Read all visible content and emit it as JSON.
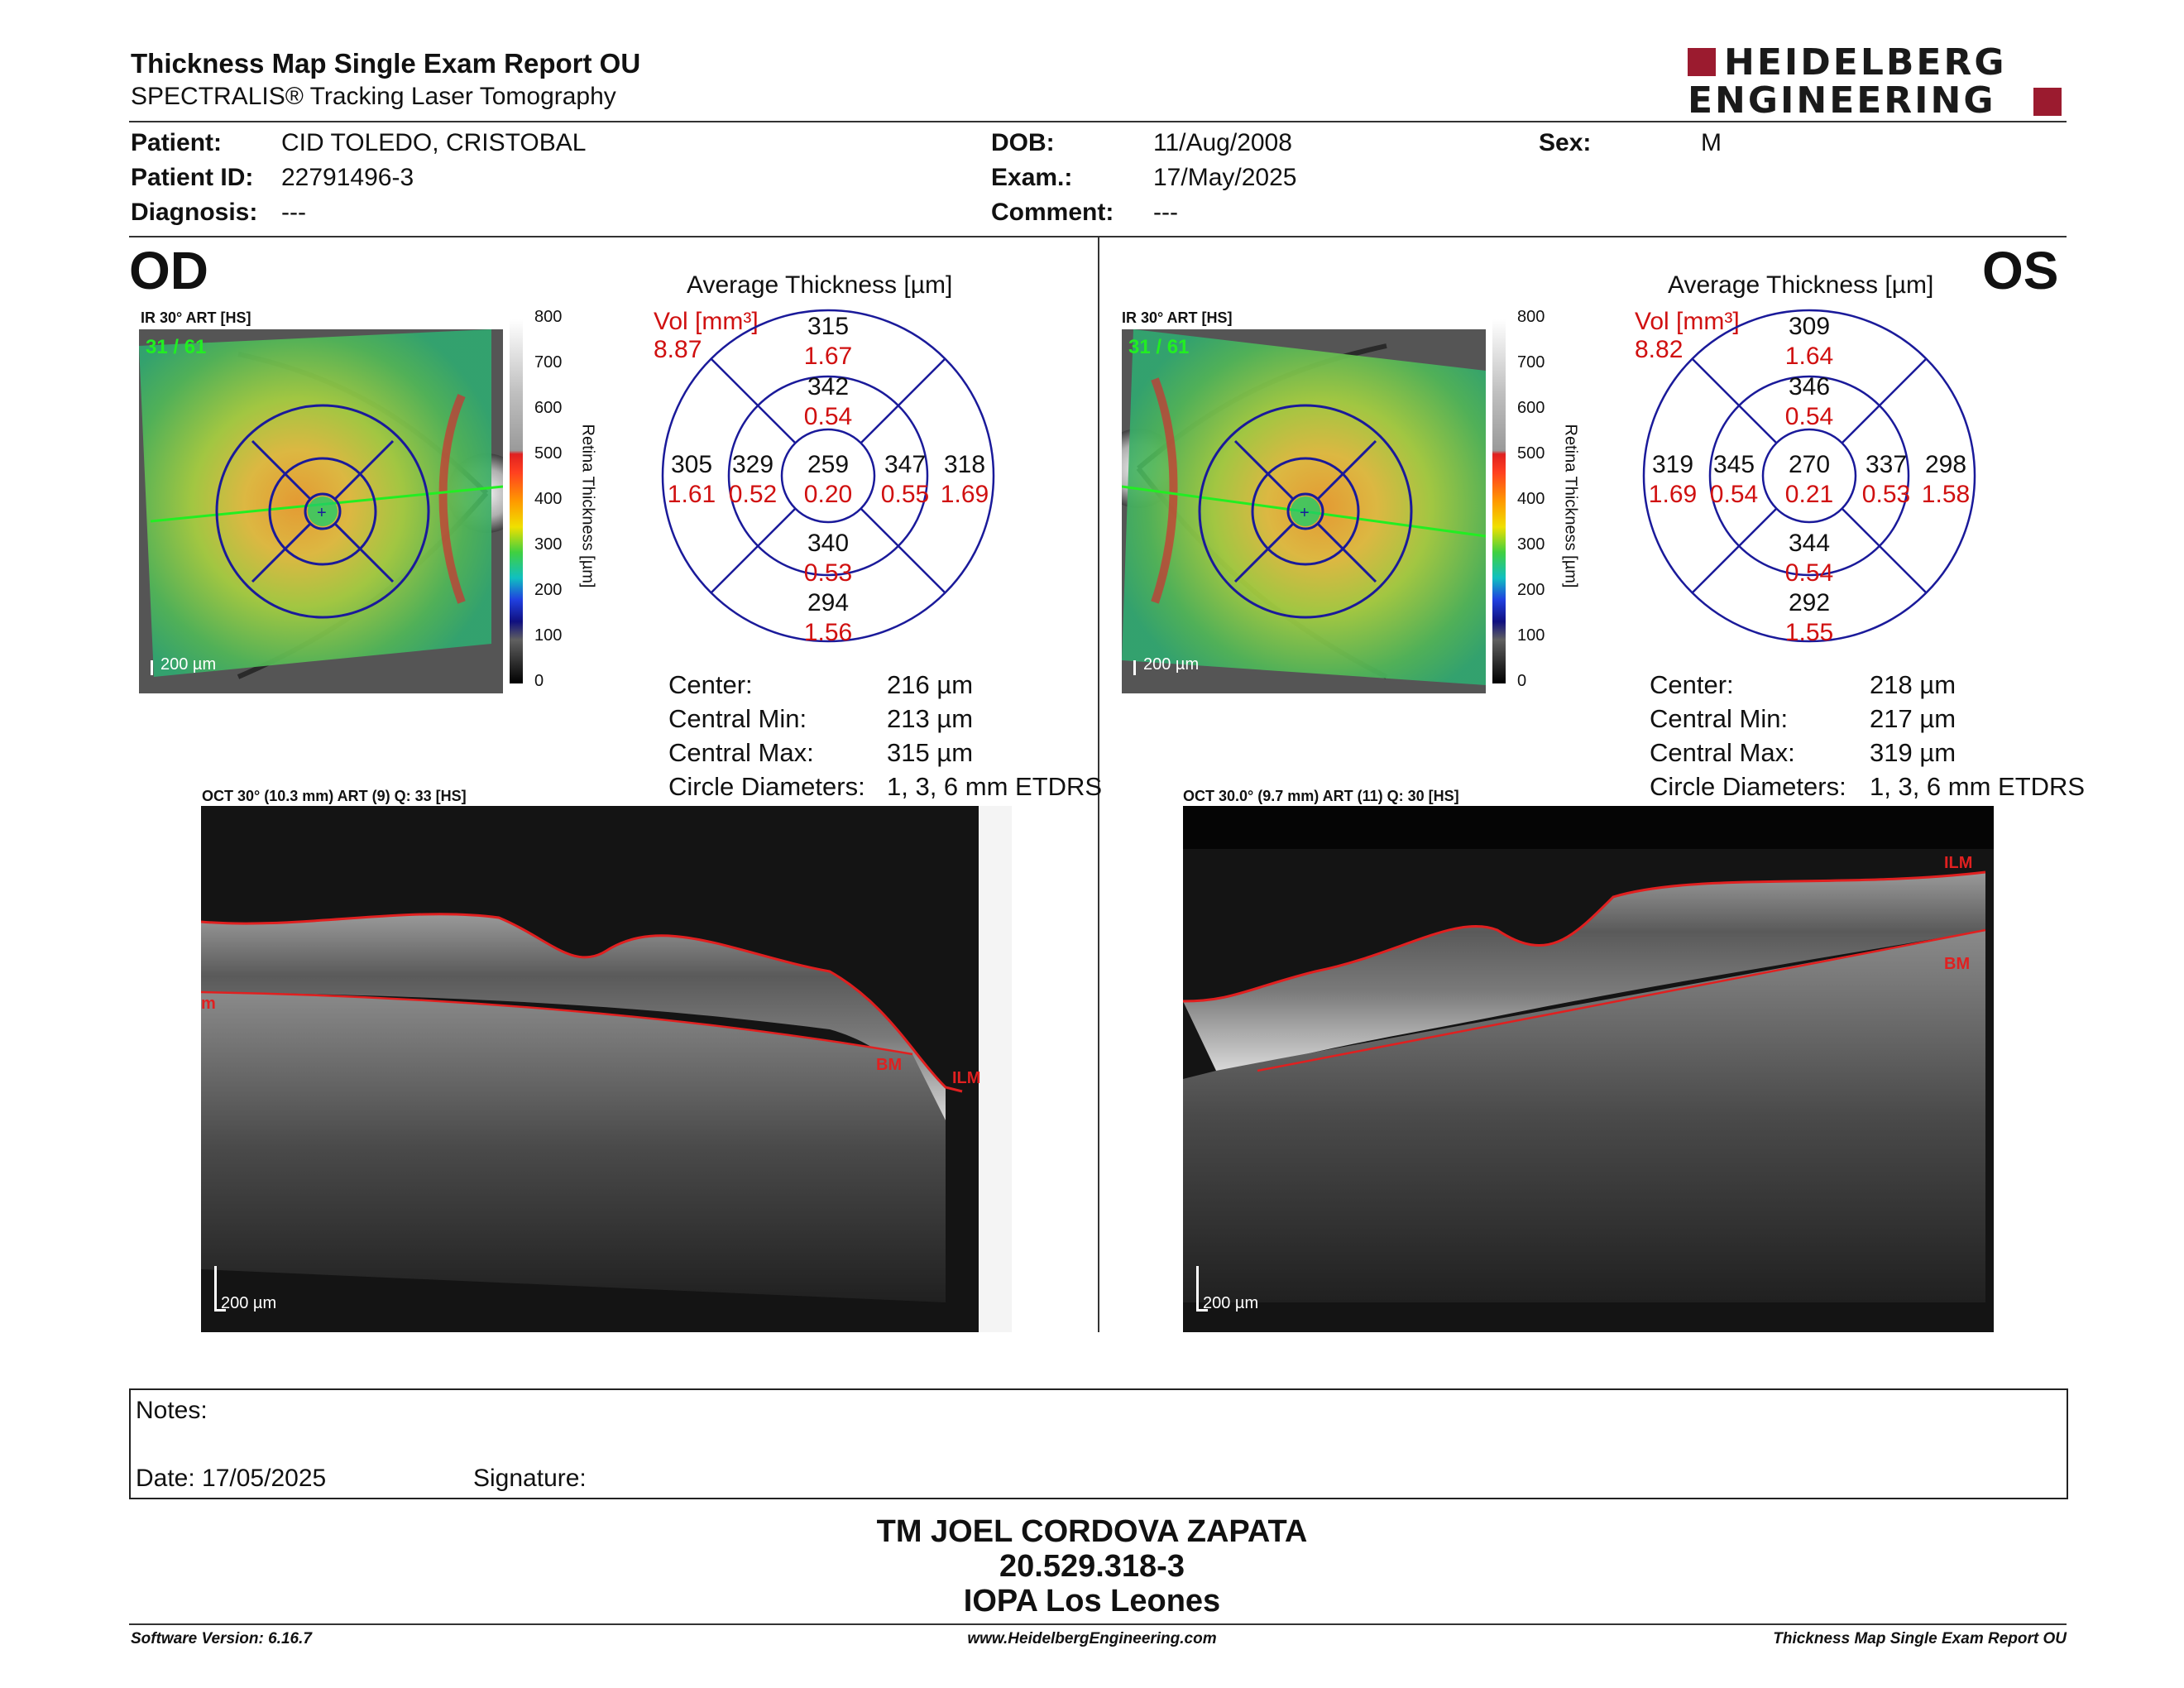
{
  "header": {
    "title": "Thickness Map Single Exam Report OU",
    "subtitle": "SPECTRALIS® Tracking Laser Tomography",
    "logo_line1": "HEIDELBERG",
    "logo_line2": "ENGINEERING"
  },
  "patient": {
    "patient_label": "Patient:",
    "patient_value": "CID TOLEDO, CRISTOBAL",
    "id_label": "Patient ID:",
    "id_value": "22791496-3",
    "diagnosis_label": "Diagnosis:",
    "diagnosis_value": "---",
    "dob_label": "DOB:",
    "dob_value": "11/Aug/2008",
    "exam_label": "Exam.:",
    "exam_value": "17/May/2025",
    "comment_label": "Comment:",
    "comment_value": "---",
    "sex_label": "Sex:",
    "sex_value": "M"
  },
  "colorbar": {
    "ticks": [
      "800",
      "700",
      "600",
      "500",
      "400",
      "300",
      "200",
      "100",
      "0"
    ],
    "title": "Retina Thickness [µm]"
  },
  "od": {
    "eye": "OD",
    "ir_label": "IR 30° ART [HS]",
    "frame": "31 / 61",
    "scale": "200 µm",
    "avg_title": "Average Thickness [µm]",
    "vol_label": "Vol [mm³]",
    "vol_value": "8.87",
    "sectors": {
      "center": {
        "t": "259",
        "v": "0.20"
      },
      "inner_sup": {
        "t": "342",
        "v": "0.54"
      },
      "inner_inf": {
        "t": "340",
        "v": "0.53"
      },
      "inner_left": {
        "t": "329",
        "v": "0.52"
      },
      "inner_right": {
        "t": "347",
        "v": "0.55"
      },
      "outer_sup": {
        "t": "315",
        "v": "1.67"
      },
      "outer_inf": {
        "t": "294",
        "v": "1.56"
      },
      "outer_left": {
        "t": "305",
        "v": "1.61"
      },
      "outer_right": {
        "t": "318",
        "v": "1.69"
      }
    },
    "stats": {
      "center_label": "Center:",
      "center_value": "216 µm",
      "min_label": "Central Min:",
      "min_value": "213 µm",
      "max_label": "Central Max:",
      "max_value": "315 µm",
      "diam_label": "Circle Diameters:",
      "diam_value": "1, 3, 6 mm ETDRS"
    },
    "oct_label": "OCT 30° (10.3 mm) ART (9) Q: 33 [HS]",
    "oct_scale": "200 µm",
    "ilm": "ILM",
    "bm": "BM",
    "edge": "m"
  },
  "os": {
    "eye": "OS",
    "ir_label": "IR 30° ART [HS]",
    "frame": "31 / 61",
    "scale": "200 µm",
    "avg_title": "Average Thickness [µm]",
    "vol_label": "Vol [mm³]",
    "vol_value": "8.82",
    "sectors": {
      "center": {
        "t": "270",
        "v": "0.21"
      },
      "inner_sup": {
        "t": "346",
        "v": "0.54"
      },
      "inner_inf": {
        "t": "344",
        "v": "0.54"
      },
      "inner_left": {
        "t": "345",
        "v": "0.54"
      },
      "inner_right": {
        "t": "337",
        "v": "0.53"
      },
      "outer_sup": {
        "t": "309",
        "v": "1.64"
      },
      "outer_inf": {
        "t": "292",
        "v": "1.55"
      },
      "outer_left": {
        "t": "319",
        "v": "1.69"
      },
      "outer_right": {
        "t": "298",
        "v": "1.58"
      }
    },
    "stats": {
      "center_label": "Center:",
      "center_value": "218 µm",
      "min_label": "Central Min:",
      "min_value": "217 µm",
      "max_label": "Central Max:",
      "max_value": "319 µm",
      "diam_label": "Circle Diameters:",
      "diam_value": "1, 3, 6 mm ETDRS"
    },
    "oct_label": "OCT 30.0° (9.7 mm) ART (11) Q: 30 [HS]",
    "oct_scale": "200 µm",
    "ilm": "ILM",
    "bm": "BM"
  },
  "notes": {
    "notes_label": "Notes:",
    "date_label": "Date: 17/05/2025",
    "signature_label": "Signature:"
  },
  "footer": {
    "name": "TM JOEL CORDOVA ZAPATA",
    "rut": "20.529.318-3",
    "place": "IOPA Los Leones",
    "software": "Software Version: 6.16.7",
    "website": "www.HeidelbergEngineering.com",
    "report_name": "Thickness Map Single Exam Report OU"
  },
  "colors": {
    "accent_red": "#d01010",
    "grid_blue": "#1a1a9a",
    "logo_red": "#9b1b2f",
    "segment_red": "#e02020",
    "scan_green": "#22ee22"
  }
}
